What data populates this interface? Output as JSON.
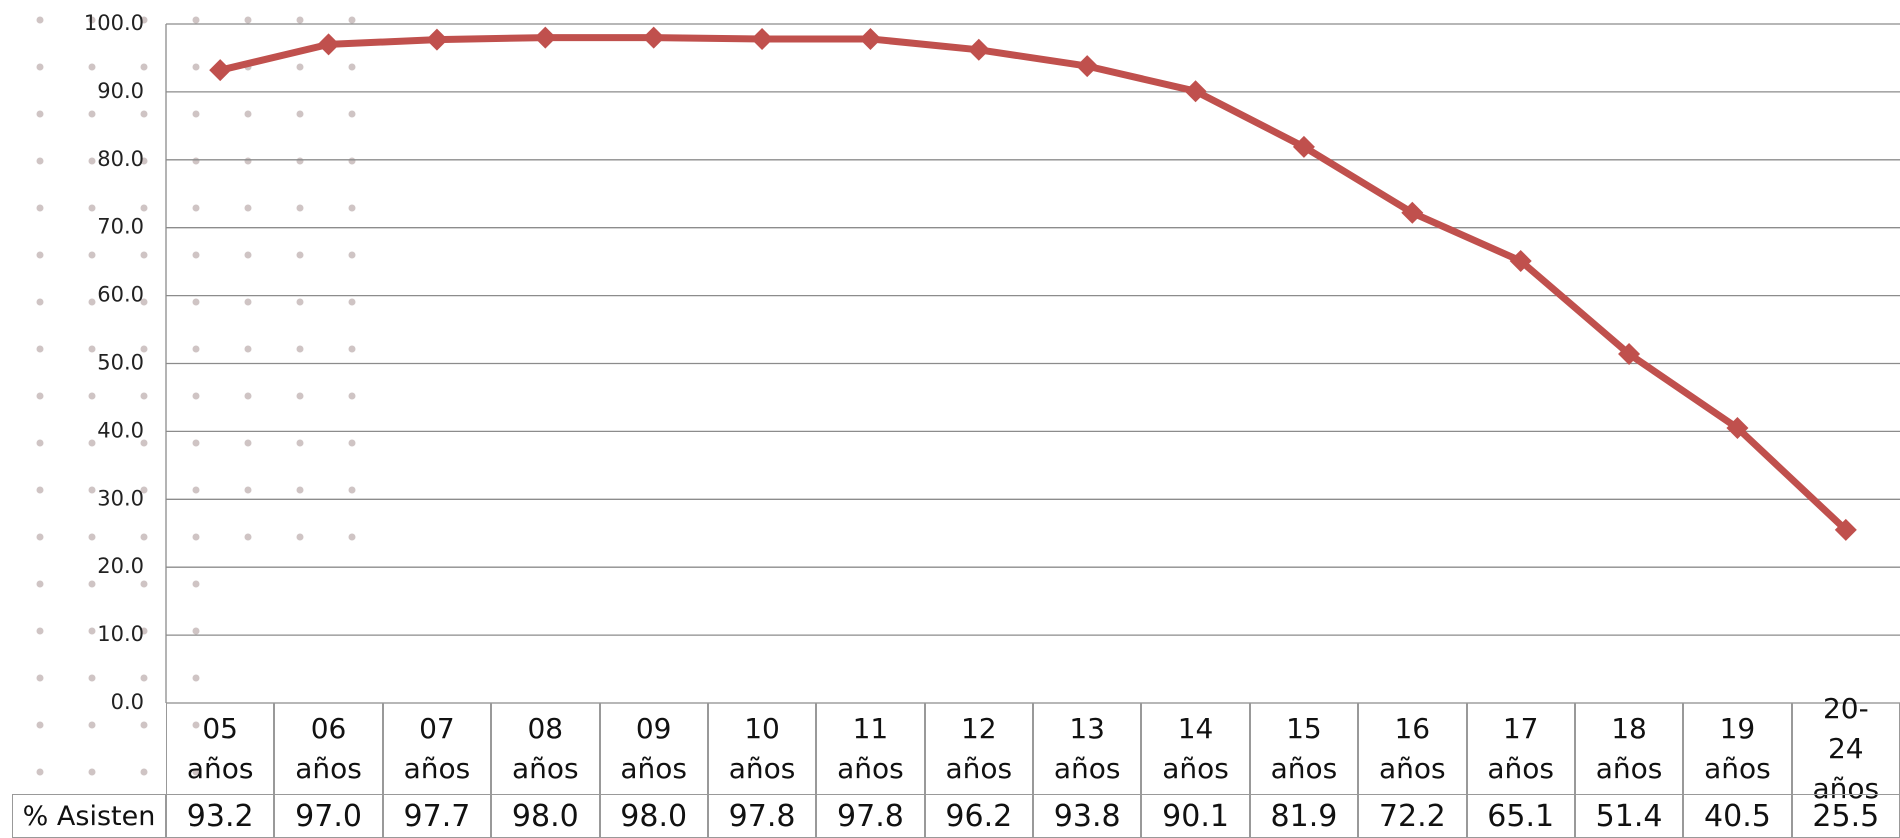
{
  "chart_data": {
    "type": "line",
    "categories": [
      "05 años",
      "06 años",
      "07 años",
      "08 años",
      "09 años",
      "10 años",
      "11 años",
      "12 años",
      "13 años",
      "14 años",
      "15 años",
      "16 años",
      "17 años",
      "18 años",
      "19 años",
      "20-24 años"
    ],
    "series": [
      {
        "name": "% Asisten",
        "color": "#c0504d",
        "values": [
          93.2,
          97.0,
          97.7,
          98.0,
          98.0,
          97.8,
          97.8,
          96.2,
          93.8,
          90.1,
          81.9,
          72.2,
          65.1,
          51.4,
          40.5,
          25.5
        ],
        "value_labels": [
          "93.2",
          "97.0",
          "97.7",
          "98.0",
          "98.0",
          "97.8",
          "97.8",
          "96.2",
          "93.8",
          "90.1",
          "81.9",
          "72.2",
          "65.1",
          "51.4",
          "40.5",
          "25.5"
        ]
      }
    ],
    "ylim": [
      0,
      100
    ],
    "yticks": [
      {
        "value": 0,
        "label": "0.0"
      },
      {
        "value": 10,
        "label": "10.0"
      },
      {
        "value": 20,
        "label": "20.0"
      },
      {
        "value": 30,
        "label": "30.0"
      },
      {
        "value": 40,
        "label": "40.0"
      },
      {
        "value": 50,
        "label": "50.0"
      },
      {
        "value": 60,
        "label": "60.0"
      },
      {
        "value": 70,
        "label": "70.0"
      },
      {
        "value": 80,
        "label": "80.0"
      },
      {
        "value": 90,
        "label": "90.0"
      },
      {
        "value": 100,
        "label": "100.0"
      }
    ],
    "grid": true
  }
}
